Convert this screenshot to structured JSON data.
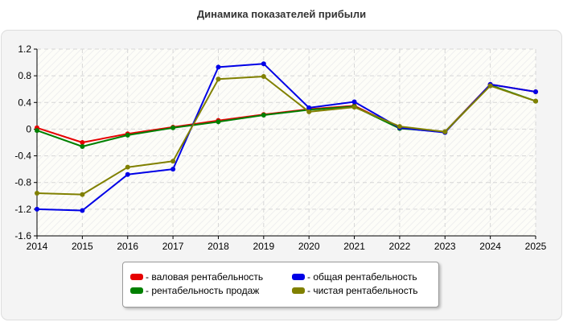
{
  "chart_data": {
    "type": "line",
    "title": "Динамика показателей прибыли",
    "x": [
      "2014",
      "2015",
      "2016",
      "2017",
      "2018",
      "2019",
      "2020",
      "2021",
      "2022",
      "2023",
      "2024",
      "2025"
    ],
    "ylim": [
      -1.6,
      1.2
    ],
    "yticks": [
      "1.2",
      "0.8",
      "0.4",
      "0",
      "-0.4",
      "-0.8",
      "-1.2",
      "-1.6"
    ],
    "grid": true,
    "legend_position": "bottom",
    "series": [
      {
        "name": "- валовая рентабельность",
        "color": "#e60000",
        "values": [
          0.02,
          -0.2,
          -0.07,
          0.03,
          0.13,
          0.22,
          0.3,
          0.35,
          0.02,
          -0.04,
          0.67,
          0.56
        ]
      },
      {
        "name": "- общая рентабельность",
        "color": "#0000e6",
        "values": [
          -1.2,
          -1.22,
          -0.68,
          -0.6,
          0.93,
          0.98,
          0.32,
          0.41,
          0.02,
          -0.05,
          0.67,
          0.56
        ]
      },
      {
        "name": "- рентабельность продаж",
        "color": "#008000",
        "values": [
          -0.02,
          -0.26,
          -0.09,
          0.02,
          0.11,
          0.21,
          0.29,
          0.34,
          0.01,
          -0.04,
          0.66,
          0.42
        ]
      },
      {
        "name": "- чистая рентабельность",
        "color": "#808000",
        "values": [
          -0.96,
          -0.98,
          -0.57,
          -0.48,
          0.75,
          0.79,
          0.26,
          0.33,
          0.04,
          -0.04,
          0.65,
          0.42
        ]
      }
    ]
  }
}
